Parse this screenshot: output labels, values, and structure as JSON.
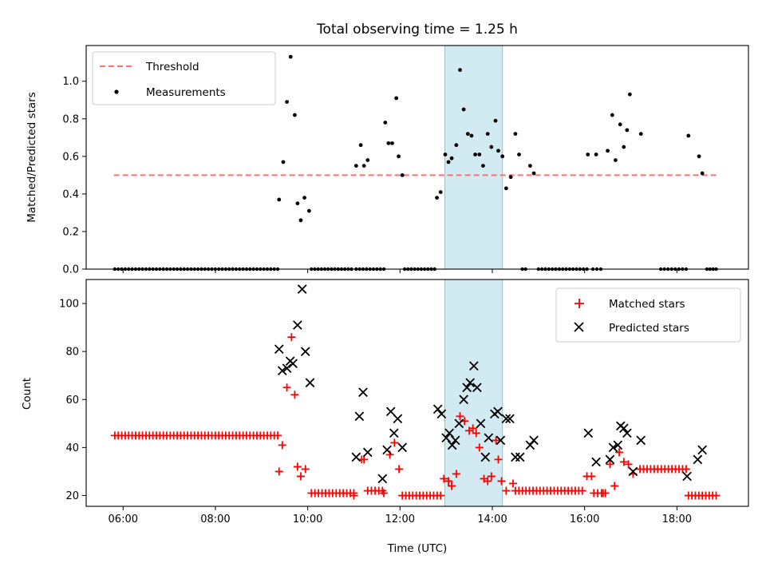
{
  "chart_data": [
    {
      "type": "scatter",
      "title": "Total observing time = 1.25 h",
      "ylabel": "Matched/Predicted stars",
      "xlabel": "",
      "ylim": [
        0,
        1.19
      ],
      "yticks": [
        "0.0",
        "0.2",
        "0.4",
        "0.6",
        "0.8",
        "1.0"
      ],
      "xticks": [
        "06:00",
        "08:00",
        "10:00",
        "12:00",
        "14:00",
        "16:00",
        "18:00"
      ],
      "xlim": [
        5.2,
        19.55
      ],
      "legend_position": "upper-left",
      "shaded_span": [
        12.97,
        14.22
      ],
      "threshold": {
        "name": "Threshold",
        "value": 0.5,
        "x": [
          5.8,
          18.85
        ],
        "color": "#ff7070"
      },
      "measurements_name": "Measurements",
      "measurements": [
        [
          9.38,
          0.37
        ],
        [
          9.47,
          0.57
        ],
        [
          9.55,
          0.89
        ],
        [
          9.63,
          1.13
        ],
        [
          9.72,
          0.82
        ],
        [
          9.78,
          0.35
        ],
        [
          9.85,
          0.26
        ],
        [
          9.93,
          0.38
        ],
        [
          10.03,
          0.31
        ],
        [
          11.05,
          0.55
        ],
        [
          11.15,
          0.66
        ],
        [
          11.22,
          0.55
        ],
        [
          11.3,
          0.58
        ],
        [
          11.68,
          0.78
        ],
        [
          11.75,
          0.67
        ],
        [
          11.83,
          0.67
        ],
        [
          11.92,
          0.91
        ],
        [
          11.97,
          0.6
        ],
        [
          12.05,
          0.5
        ],
        [
          12.8,
          0.38
        ],
        [
          12.88,
          0.41
        ],
        [
          12.98,
          0.61
        ],
        [
          13.05,
          0.57
        ],
        [
          13.12,
          0.59
        ],
        [
          13.22,
          0.66
        ],
        [
          13.3,
          1.06
        ],
        [
          13.38,
          0.85
        ],
        [
          13.47,
          0.72
        ],
        [
          13.55,
          0.71
        ],
        [
          13.63,
          0.61
        ],
        [
          13.72,
          0.61
        ],
        [
          13.8,
          0.55
        ],
        [
          13.9,
          0.72
        ],
        [
          13.98,
          0.65
        ],
        [
          14.07,
          0.79
        ],
        [
          14.13,
          0.63
        ],
        [
          14.22,
          0.6
        ],
        [
          14.3,
          0.43
        ],
        [
          14.4,
          0.49
        ],
        [
          14.5,
          0.72
        ],
        [
          14.58,
          0.61
        ],
        [
          14.82,
          0.55
        ],
        [
          14.9,
          0.51
        ],
        [
          16.07,
          0.61
        ],
        [
          16.25,
          0.61
        ],
        [
          16.5,
          0.63
        ],
        [
          16.6,
          0.82
        ],
        [
          16.67,
          0.58
        ],
        [
          16.77,
          0.77
        ],
        [
          16.85,
          0.65
        ],
        [
          16.92,
          0.74
        ],
        [
          16.98,
          0.93
        ],
        [
          17.22,
          0.72
        ],
        [
          18.25,
          0.71
        ],
        [
          18.48,
          0.6
        ],
        [
          18.55,
          0.51
        ]
      ],
      "zero_runs": [
        [
          5.82,
          9.35
        ],
        [
          10.08,
          10.95
        ],
        [
          11.05,
          11.65
        ],
        [
          12.1,
          12.75
        ],
        [
          14.65,
          14.72
        ],
        [
          15.0,
          16.05
        ],
        [
          16.18,
          16.35
        ],
        [
          17.65,
          18.2
        ],
        [
          18.65,
          18.85
        ]
      ]
    },
    {
      "type": "scatter",
      "xlabel": "Time (UTC)",
      "ylabel": "Count",
      "ylim": [
        15.5,
        110
      ],
      "yticks": [
        "20",
        "40",
        "60",
        "80",
        "100"
      ],
      "xticks": [
        "06:00",
        "08:00",
        "10:00",
        "12:00",
        "14:00",
        "16:00",
        "18:00"
      ],
      "xlim": [
        5.2,
        19.55
      ],
      "legend_position": "upper-right",
      "shaded_span": [
        12.97,
        14.22
      ],
      "series": [
        {
          "name": "Matched stars",
          "marker": "plus",
          "color": "#ff0000",
          "runs": [
            [
              5.82,
              9.35,
              45
            ],
            [
              10.08,
              11.0,
              21
            ],
            [
              11.3,
              11.62,
              22
            ],
            [
              12.05,
              12.88,
              20
            ],
            [
              14.5,
              15.95,
              22
            ],
            [
              16.2,
              16.45,
              21
            ],
            [
              17.2,
              18.2,
              31
            ],
            [
              18.25,
              18.85,
              20
            ]
          ],
          "points": [
            [
              9.38,
              30
            ],
            [
              9.45,
              41
            ],
            [
              9.55,
              65
            ],
            [
              9.65,
              86
            ],
            [
              9.72,
              62
            ],
            [
              9.78,
              32
            ],
            [
              9.85,
              28
            ],
            [
              9.95,
              31
            ],
            [
              11.0,
              20
            ],
            [
              11.17,
              35
            ],
            [
              11.22,
              35
            ],
            [
              11.65,
              21
            ],
            [
              11.78,
              37
            ],
            [
              11.88,
              42
            ],
            [
              11.98,
              31
            ],
            [
              12.95,
              27
            ],
            [
              13.05,
              26
            ],
            [
              13.12,
              24
            ],
            [
              13.22,
              29
            ],
            [
              13.3,
              53
            ],
            [
              13.4,
              51
            ],
            [
              13.5,
              47
            ],
            [
              13.58,
              48
            ],
            [
              13.65,
              46
            ],
            [
              13.72,
              40
            ],
            [
              13.82,
              27
            ],
            [
              13.9,
              26
            ],
            [
              13.98,
              28
            ],
            [
              14.08,
              43
            ],
            [
              14.13,
              35
            ],
            [
              14.2,
              26
            ],
            [
              14.3,
              22
            ],
            [
              14.45,
              25
            ],
            [
              16.05,
              28
            ],
            [
              16.15,
              28
            ],
            [
              16.4,
              21
            ],
            [
              16.55,
              33
            ],
            [
              16.65,
              24
            ],
            [
              16.75,
              38
            ],
            [
              16.85,
              34
            ],
            [
              16.95,
              33
            ],
            [
              17.05,
              29
            ]
          ]
        },
        {
          "name": "Predicted stars",
          "marker": "x",
          "color": "#000000",
          "points": [
            [
              9.38,
              81
            ],
            [
              9.45,
              72
            ],
            [
              9.55,
              73
            ],
            [
              9.62,
              76
            ],
            [
              9.68,
              75
            ],
            [
              9.78,
              91
            ],
            [
              9.88,
              106
            ],
            [
              9.95,
              80
            ],
            [
              10.05,
              67
            ],
            [
              11.05,
              36
            ],
            [
              11.12,
              53
            ],
            [
              11.2,
              63
            ],
            [
              11.3,
              38
            ],
            [
              11.62,
              27
            ],
            [
              11.72,
              39
            ],
            [
              11.8,
              55
            ],
            [
              11.87,
              46
            ],
            [
              11.95,
              52
            ],
            [
              12.05,
              40
            ],
            [
              12.82,
              56
            ],
            [
              12.9,
              54
            ],
            [
              13.0,
              44
            ],
            [
              13.07,
              46
            ],
            [
              13.13,
              41
            ],
            [
              13.2,
              43
            ],
            [
              13.28,
              50
            ],
            [
              13.38,
              60
            ],
            [
              13.45,
              65
            ],
            [
              13.52,
              67
            ],
            [
              13.6,
              74
            ],
            [
              13.67,
              65
            ],
            [
              13.75,
              50
            ],
            [
              13.85,
              36
            ],
            [
              13.92,
              44
            ],
            [
              14.05,
              54
            ],
            [
              14.12,
              55
            ],
            [
              14.18,
              43
            ],
            [
              14.3,
              52
            ],
            [
              14.38,
              52
            ],
            [
              14.5,
              36
            ],
            [
              14.6,
              36
            ],
            [
              14.82,
              41
            ],
            [
              14.9,
              43
            ],
            [
              16.08,
              46
            ],
            [
              16.25,
              34
            ],
            [
              16.55,
              35
            ],
            [
              16.62,
              40
            ],
            [
              16.72,
              41
            ],
            [
              16.78,
              49
            ],
            [
              16.85,
              48
            ],
            [
              16.92,
              46
            ],
            [
              17.05,
              30
            ],
            [
              17.22,
              43
            ],
            [
              18.22,
              28
            ],
            [
              18.45,
              35
            ],
            [
              18.55,
              39
            ]
          ]
        }
      ]
    }
  ]
}
